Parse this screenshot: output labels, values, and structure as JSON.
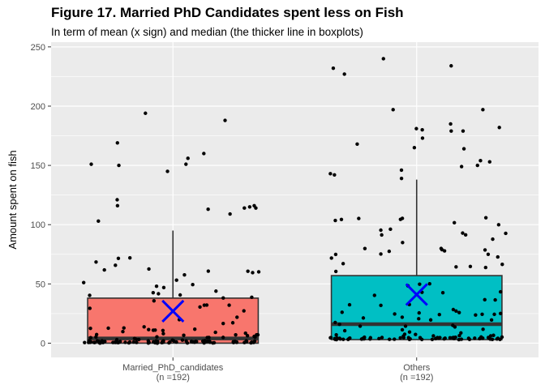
{
  "chart_data": {
    "type": "boxplot",
    "title": "Figure 17. Married PhD Candidates spent less on Fish",
    "subtitle": "In term of mean (x sign) and median (the thicker line in boxplots)",
    "xlabel": "",
    "ylabel": "Amount spent on fish",
    "ylim": [
      -12,
      254
    ],
    "yticks": [
      0,
      50,
      100,
      150,
      200,
      250
    ],
    "grid": true,
    "legend": "none",
    "mean_marker_color": "#0000ff",
    "point_color": "#000000",
    "panel_color": "#ebebeb",
    "categories": [
      {
        "name": "Married_PhD_candidates",
        "count_label": "(n =192)",
        "fill": "#f8766d",
        "q1": 0,
        "median": 4,
        "q3": 38,
        "whisker_low": 0,
        "whisker_high": 95,
        "mean": 27,
        "outliers": [
          145,
          121,
          116,
          115,
          151,
          150,
          116,
          114,
          169,
          160,
          156,
          194,
          188,
          151,
          103,
          114,
          113,
          109
        ]
      },
      {
        "name": "Others",
        "count_label": "(n =192)",
        "fill": "#00bfc4",
        "q1": 3,
        "median": 16,
        "q3": 57,
        "whisker_low": 0,
        "whisker_high": 138,
        "mean": 41,
        "outliers": [
          179,
          185,
          197,
          153,
          142,
          234,
          179,
          168,
          227,
          180,
          165,
          181,
          150,
          146,
          240,
          232,
          197,
          182,
          173,
          164,
          154,
          149,
          143,
          139
        ]
      }
    ]
  }
}
